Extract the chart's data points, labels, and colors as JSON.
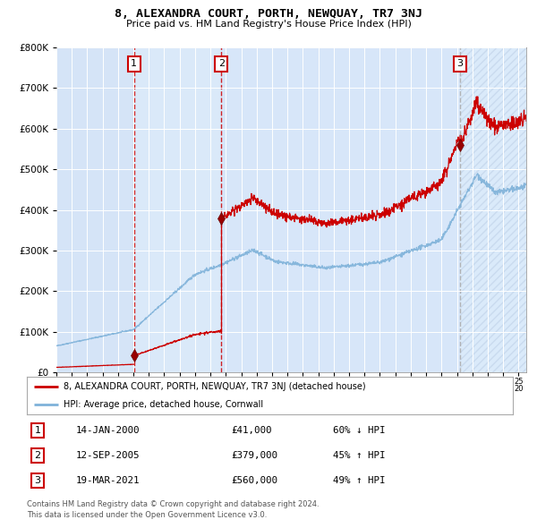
{
  "title": "8, ALEXANDRA COURT, PORTH, NEWQUAY, TR7 3NJ",
  "subtitle": "Price paid vs. HM Land Registry's House Price Index (HPI)",
  "legend_line1": "8, ALEXANDRA COURT, PORTH, NEWQUAY, TR7 3NJ (detached house)",
  "legend_line2": "HPI: Average price, detached house, Cornwall",
  "transactions": [
    {
      "num": 1,
      "date": "14-JAN-2000",
      "price": 41000,
      "pct": "60%",
      "dir": "↓",
      "year_x": 2000.04
    },
    {
      "num": 2,
      "date": "12-SEP-2005",
      "price": 379000,
      "pct": "45%",
      "dir": "↑",
      "year_x": 2005.71
    },
    {
      "num": 3,
      "date": "19-MAR-2021",
      "price": 560000,
      "pct": "49%",
      "dir": "↑",
      "year_x": 2021.21
    }
  ],
  "footer1": "Contains HM Land Registry data © Crown copyright and database right 2024.",
  "footer2": "This data is licensed under the Open Government Licence v3.0.",
  "red_color": "#cc0000",
  "blue_color": "#7fb2d9",
  "bg_color": "#ddeeff",
  "bg_light": "#e8f0fa",
  "ylim": [
    0,
    800000
  ],
  "xmin": 1995.0,
  "xmax": 2025.5
}
